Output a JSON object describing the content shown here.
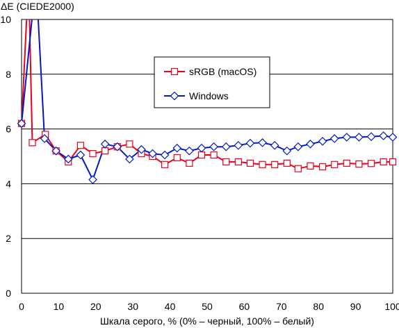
{
  "chart_data": {
    "type": "line",
    "title": "",
    "ylabel": "ΔE (CIEDE2000)",
    "xlabel": "Шкала серого, % (0% – черный, 100% – белый)",
    "xlim": [
      0,
      100
    ],
    "ylim": [
      0,
      10
    ],
    "xticks": [
      0,
      10,
      20,
      30,
      40,
      50,
      60,
      70,
      80,
      90,
      100
    ],
    "yticks": [
      0,
      2,
      4,
      6,
      8,
      10
    ],
    "grid": "horizontal",
    "legend_position": "top-center",
    "series": [
      {
        "name": "sRGB (macOS)",
        "color": "#e8001c",
        "marker": "square",
        "x": [
          0,
          2.9,
          6.4,
          9.3,
          12.6,
          15.9,
          19.2,
          22.5,
          25.8,
          29.1,
          32.3,
          35.3,
          38.6,
          41.9,
          45.2,
          48.5,
          51.8,
          55.1,
          58.4,
          61.6,
          64.9,
          68.2,
          71.5,
          74.5,
          77.8,
          81.1,
          84.3,
          87.6,
          90.9,
          94.2,
          97.5,
          100
        ],
        "y": [
          6.2,
          5.5,
          5.8,
          5.2,
          4.8,
          5.4,
          5.1,
          5.2,
          5.35,
          5.45,
          5.1,
          5.0,
          4.7,
          4.95,
          4.75,
          5.05,
          5.05,
          4.8,
          4.8,
          4.75,
          4.7,
          4.7,
          4.75,
          4.55,
          4.65,
          4.62,
          4.7,
          4.75,
          4.72,
          4.74,
          4.8,
          4.8
        ],
        "peak": {
          "x": 1.9,
          "y": 11.5
        }
      },
      {
        "name": "Windows",
        "color": "#0019c8",
        "marker": "diamond",
        "x": [
          0,
          3.9,
          6.2,
          9.3,
          12.6,
          15.9,
          19.2,
          22.5,
          25.8,
          29.1,
          32.3,
          35.3,
          38.6,
          41.9,
          45.2,
          48.5,
          51.8,
          55.1,
          58.4,
          61.6,
          64.9,
          68.2,
          71.5,
          74.5,
          77.8,
          81.1,
          84.3,
          87.6,
          90.9,
          94.2,
          97.5,
          100
        ],
        "y": [
          6.2,
          11.5,
          5.65,
          5.2,
          4.9,
          5.05,
          4.15,
          5.45,
          5.35,
          4.9,
          5.25,
          5.1,
          5.05,
          5.3,
          5.2,
          5.3,
          5.35,
          5.35,
          5.4,
          5.48,
          5.5,
          5.4,
          5.2,
          5.35,
          5.45,
          5.55,
          5.65,
          5.7,
          5.7,
          5.72,
          5.75,
          5.7
        ]
      }
    ]
  }
}
